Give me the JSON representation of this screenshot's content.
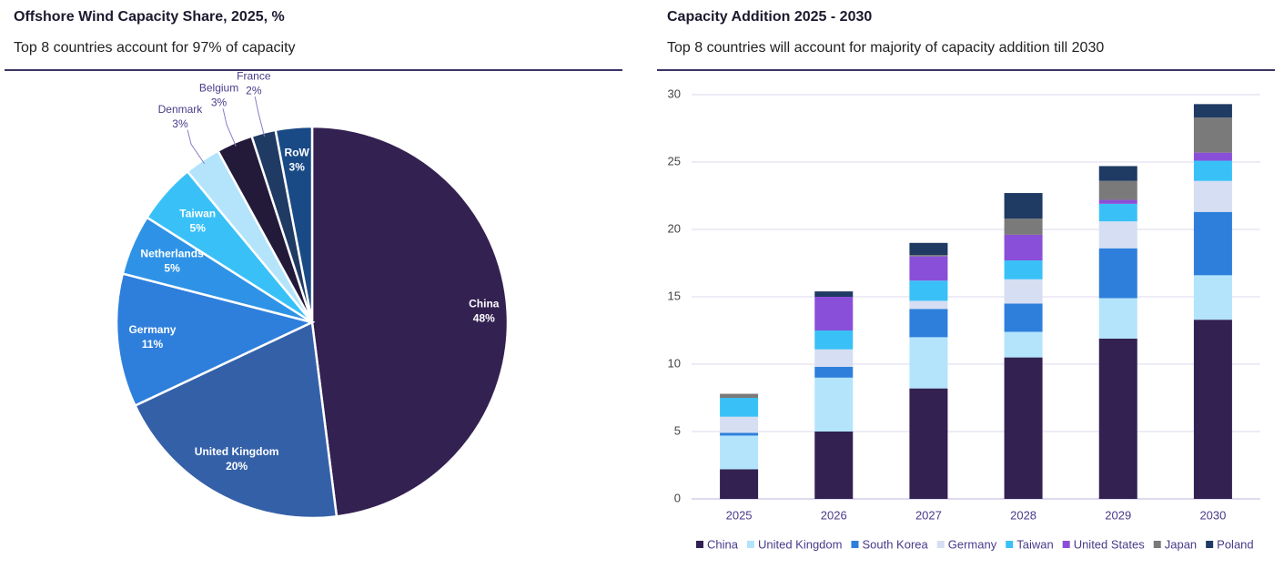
{
  "chart_data": [
    {
      "type": "pie",
      "title": "Offshore Wind Capacity Share, 2025, %",
      "subtitle": "Top 8 countries account for 97% of capacity",
      "categories": [
        "China",
        "United Kingdom",
        "Germany",
        "Netherlands",
        "Taiwan",
        "Denmark",
        "Belgium",
        "France",
        "RoW"
      ],
      "values": [
        48,
        20,
        11,
        5,
        5,
        3,
        3,
        2,
        3
      ],
      "value_labels": [
        "48%",
        "20%",
        "11%",
        "5%",
        "5%",
        "3%",
        "3%",
        "2%",
        "3%"
      ],
      "colors": [
        "#332151",
        "#3460a8",
        "#2e7fdc",
        "#2e93e6",
        "#39c1f7",
        "#b3e4fb",
        "#231a3a",
        "#1f3a63",
        "#1a4a86"
      ]
    },
    {
      "type": "stacked_bar",
      "title": "Capacity Addition 2025 - 2030",
      "subtitle": "Top 8 countries will account for majority of capacity addition till 2030",
      "categories": [
        "2025",
        "2026",
        "2027",
        "2028",
        "2029",
        "2030"
      ],
      "series": [
        {
          "name": "China",
          "color": "#332151",
          "values": [
            2.2,
            5.0,
            8.2,
            10.5,
            11.9,
            13.3
          ]
        },
        {
          "name": "United Kingdom",
          "color": "#b3e4fb",
          "values": [
            2.5,
            4.0,
            3.8,
            1.9,
            3.0,
            3.3
          ]
        },
        {
          "name": "South Korea",
          "color": "#2e7fdc",
          "values": [
            0.2,
            0.8,
            2.1,
            2.1,
            3.7,
            4.7
          ]
        },
        {
          "name": "Germany",
          "color": "#d5def2",
          "values": [
            1.2,
            1.3,
            0.6,
            1.8,
            2.0,
            2.3
          ]
        },
        {
          "name": "Taiwan",
          "color": "#39c1f7",
          "values": [
            1.4,
            1.4,
            1.5,
            1.4,
            1.3,
            1.5
          ]
        },
        {
          "name": "United States",
          "color": "#8a4fd8",
          "values": [
            0,
            2.5,
            1.8,
            1.9,
            0.3,
            0.6
          ]
        },
        {
          "name": "Japan",
          "color": "#7a7a7a",
          "values": [
            0.3,
            0,
            0.1,
            1.2,
            1.4,
            2.6
          ]
        },
        {
          "name": "Poland",
          "color": "#1f3a63",
          "values": [
            0,
            0.4,
            0.9,
            1.9,
            1.1,
            1.0
          ]
        }
      ],
      "ylim": [
        0,
        30
      ],
      "yticks": [
        0,
        5,
        10,
        15,
        20,
        25,
        30
      ],
      "grid": true,
      "legend": "bottom"
    }
  ]
}
